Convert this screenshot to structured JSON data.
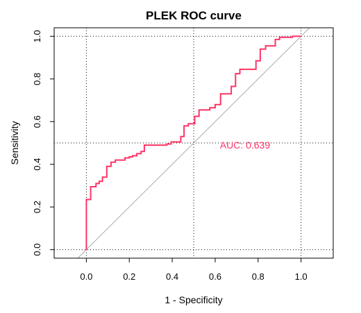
{
  "chart_data": {
    "type": "line",
    "title": "PLEK ROC curve",
    "xlabel": "1 - Specificity",
    "ylabel": "Sensitivity",
    "xlim": [
      -0.15,
      1.15
    ],
    "ylim": [
      -0.04,
      1.04
    ],
    "x_ticks": [
      "0.0",
      "0.2",
      "0.4",
      "0.6",
      "0.8",
      "1.0"
    ],
    "y_ticks": [
      "0.0",
      "0.2",
      "0.4",
      "0.6",
      "0.8",
      "1.0"
    ],
    "grid": true,
    "grid_lines": [
      0,
      0.5,
      1
    ],
    "diagonal_reference": true,
    "annotation": "AUC: 0.639",
    "annotation_position": [
      0.6,
      0.48
    ],
    "series": [
      {
        "color": "#ff3366",
        "points": [
          [
            0.0,
            0.0
          ],
          [
            0.0,
            0.235
          ],
          [
            0.02,
            0.235
          ],
          [
            0.02,
            0.295
          ],
          [
            0.045,
            0.295
          ],
          [
            0.045,
            0.31
          ],
          [
            0.06,
            0.31
          ],
          [
            0.06,
            0.32
          ],
          [
            0.075,
            0.32
          ],
          [
            0.075,
            0.34
          ],
          [
            0.095,
            0.34
          ],
          [
            0.095,
            0.39
          ],
          [
            0.115,
            0.39
          ],
          [
            0.115,
            0.41
          ],
          [
            0.135,
            0.41
          ],
          [
            0.135,
            0.42
          ],
          [
            0.18,
            0.42
          ],
          [
            0.18,
            0.43
          ],
          [
            0.2,
            0.43
          ],
          [
            0.2,
            0.435
          ],
          [
            0.215,
            0.435
          ],
          [
            0.215,
            0.44
          ],
          [
            0.235,
            0.44
          ],
          [
            0.235,
            0.45
          ],
          [
            0.255,
            0.45
          ],
          [
            0.255,
            0.46
          ],
          [
            0.27,
            0.46
          ],
          [
            0.27,
            0.49
          ],
          [
            0.375,
            0.49
          ],
          [
            0.375,
            0.495
          ],
          [
            0.395,
            0.495
          ],
          [
            0.395,
            0.505
          ],
          [
            0.44,
            0.505
          ],
          [
            0.44,
            0.53
          ],
          [
            0.455,
            0.53
          ],
          [
            0.455,
            0.58
          ],
          [
            0.475,
            0.58
          ],
          [
            0.475,
            0.59
          ],
          [
            0.505,
            0.59
          ],
          [
            0.505,
            0.625
          ],
          [
            0.525,
            0.625
          ],
          [
            0.525,
            0.655
          ],
          [
            0.575,
            0.655
          ],
          [
            0.575,
            0.665
          ],
          [
            0.6,
            0.665
          ],
          [
            0.6,
            0.68
          ],
          [
            0.625,
            0.68
          ],
          [
            0.625,
            0.73
          ],
          [
            0.675,
            0.73
          ],
          [
            0.675,
            0.765
          ],
          [
            0.695,
            0.765
          ],
          [
            0.695,
            0.825
          ],
          [
            0.715,
            0.825
          ],
          [
            0.715,
            0.845
          ],
          [
            0.79,
            0.845
          ],
          [
            0.79,
            0.885
          ],
          [
            0.81,
            0.885
          ],
          [
            0.81,
            0.94
          ],
          [
            0.835,
            0.94
          ],
          [
            0.835,
            0.955
          ],
          [
            0.88,
            0.955
          ],
          [
            0.88,
            0.985
          ],
          [
            0.9,
            0.985
          ],
          [
            0.9,
            0.995
          ],
          [
            0.96,
            0.995
          ],
          [
            0.96,
            1.0
          ],
          [
            1.0,
            1.0
          ]
        ]
      }
    ]
  }
}
